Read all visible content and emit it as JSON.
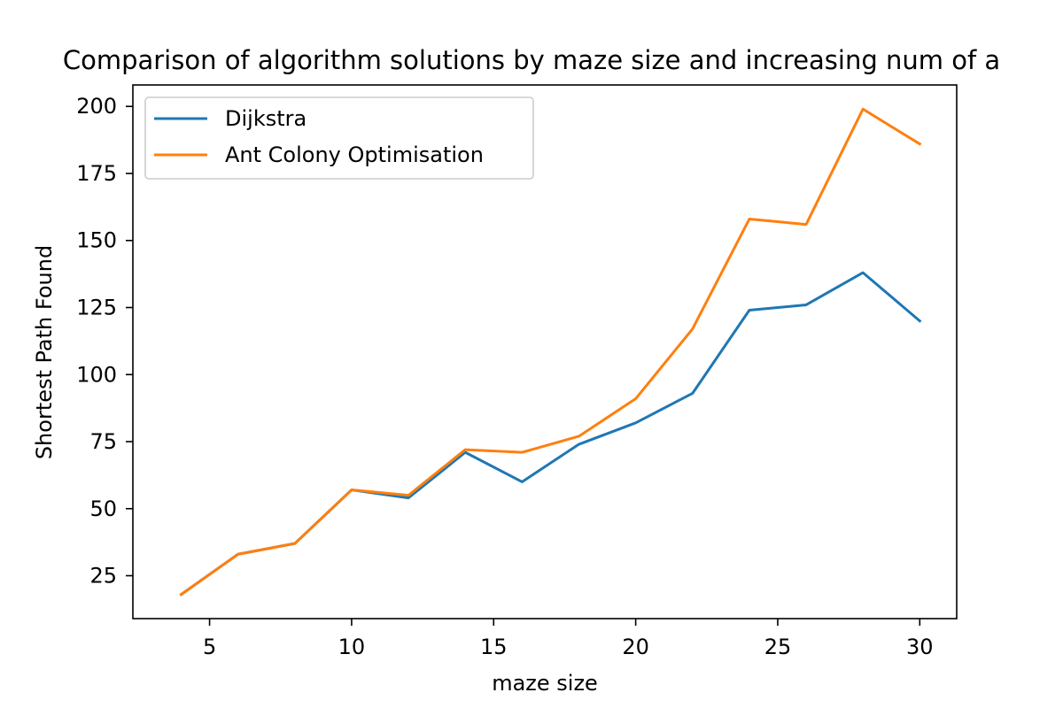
{
  "chart_data": {
    "type": "line",
    "title": "Comparison of algorithm solutions by maze size and increasing num of a",
    "xlabel": "maze size",
    "ylabel": "Shortest Path Found",
    "xlim": [
      2.3,
      31.3
    ],
    "ylim": [
      9,
      208
    ],
    "xticks": [
      5,
      10,
      15,
      20,
      25,
      30
    ],
    "yticks": [
      25,
      50,
      75,
      100,
      125,
      150,
      175,
      200
    ],
    "grid": false,
    "legend_position": "top-left",
    "x": [
      4,
      6,
      8,
      10,
      12,
      14,
      16,
      18,
      20,
      22,
      24,
      26,
      28,
      30
    ],
    "series": [
      {
        "name": "Dijkstra",
        "color": "#1f77b4",
        "values": [
          18,
          33,
          37,
          57,
          54,
          71,
          60,
          74,
          82,
          93,
          124,
          126,
          138,
          120
        ]
      },
      {
        "name": "Ant Colony Optimisation",
        "color": "#ff7f0e",
        "values": [
          18,
          33,
          37,
          57,
          55,
          72,
          71,
          77,
          91,
          117,
          158,
          156,
          199,
          186
        ]
      }
    ]
  }
}
